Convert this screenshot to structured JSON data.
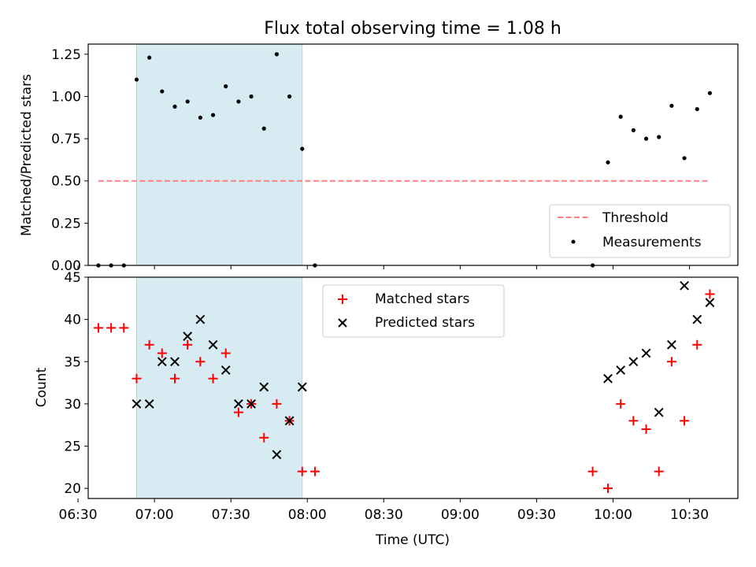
{
  "title": "Flux total observing time = 1.08 h",
  "colors": {
    "highlight": "#add8e6",
    "threshold": "#ff7f7f",
    "measurement": "#000000",
    "matched": "#ff0000",
    "predicted": "#000000"
  },
  "chart_data": [
    {
      "type": "scatter",
      "panel": "top",
      "ylabel": "Matched/Predicted stars",
      "ylim": [
        0,
        1.31
      ],
      "yticks": [
        "0.00",
        "0.25",
        "0.50",
        "0.75",
        "1.00",
        "1.25"
      ],
      "ytick_values": [
        0,
        0.25,
        0.5,
        0.75,
        1.0,
        1.25
      ],
      "threshold": {
        "name": "Threshold",
        "y": 0.5,
        "x_start": "06:38",
        "x_end": "10:38"
      },
      "highlight_span": {
        "start": "06:53",
        "end": "07:58"
      },
      "legend": {
        "placement": "lower right",
        "entries": [
          "Threshold",
          "Measurements"
        ]
      },
      "series": [
        {
          "name": "Measurements",
          "points": [
            {
              "x": "06:38",
              "y": 0.0
            },
            {
              "x": "06:43",
              "y": 0.0
            },
            {
              "x": "06:48",
              "y": 0.0
            },
            {
              "x": "06:53",
              "y": 1.1
            },
            {
              "x": "06:58",
              "y": 1.23
            },
            {
              "x": "07:03",
              "y": 1.03
            },
            {
              "x": "07:08",
              "y": 0.94
            },
            {
              "x": "07:13",
              "y": 0.97
            },
            {
              "x": "07:18",
              "y": 0.875
            },
            {
              "x": "07:23",
              "y": 0.89
            },
            {
              "x": "07:28",
              "y": 1.06
            },
            {
              "x": "07:33",
              "y": 0.97
            },
            {
              "x": "07:38",
              "y": 1.0
            },
            {
              "x": "07:43",
              "y": 0.81
            },
            {
              "x": "07:48",
              "y": 1.25
            },
            {
              "x": "07:53",
              "y": 1.0
            },
            {
              "x": "07:58",
              "y": 0.69
            },
            {
              "x": "08:03",
              "y": 0.0
            },
            {
              "x": "09:52",
              "y": 0.0
            },
            {
              "x": "09:58",
              "y": 0.61
            },
            {
              "x": "10:03",
              "y": 0.88
            },
            {
              "x": "10:08",
              "y": 0.8
            },
            {
              "x": "10:13",
              "y": 0.75
            },
            {
              "x": "10:18",
              "y": 0.76
            },
            {
              "x": "10:23",
              "y": 0.945
            },
            {
              "x": "10:28",
              "y": 0.635
            },
            {
              "x": "10:33",
              "y": 0.925
            },
            {
              "x": "10:38",
              "y": 1.02
            }
          ]
        }
      ]
    },
    {
      "type": "scatter",
      "panel": "bottom",
      "xlabel": "Time (UTC)",
      "ylabel": "Count",
      "ylim": [
        18.8,
        45
      ],
      "yticks": [
        "20",
        "25",
        "30",
        "35",
        "40",
        "45"
      ],
      "ytick_values": [
        20,
        25,
        30,
        35,
        40,
        45
      ],
      "xlim": [
        "06:34",
        "10:49"
      ],
      "xticks": [
        "06:30",
        "07:00",
        "07:30",
        "08:00",
        "08:30",
        "09:00",
        "09:30",
        "10:00",
        "10:30"
      ],
      "highlight_span": {
        "start": "06:53",
        "end": "07:58"
      },
      "legend": {
        "placement": "upper center",
        "entries": [
          "Matched stars",
          "Predicted stars"
        ]
      },
      "series": [
        {
          "name": "Matched stars",
          "marker": "+",
          "points": [
            {
              "x": "06:38",
              "y": 39
            },
            {
              "x": "06:43",
              "y": 39
            },
            {
              "x": "06:48",
              "y": 39
            },
            {
              "x": "06:53",
              "y": 33
            },
            {
              "x": "06:58",
              "y": 37
            },
            {
              "x": "07:03",
              "y": 36
            },
            {
              "x": "07:08",
              "y": 33
            },
            {
              "x": "07:13",
              "y": 37
            },
            {
              "x": "07:18",
              "y": 35
            },
            {
              "x": "07:23",
              "y": 33
            },
            {
              "x": "07:28",
              "y": 36
            },
            {
              "x": "07:33",
              "y": 29
            },
            {
              "x": "07:38",
              "y": 30
            },
            {
              "x": "07:43",
              "y": 26
            },
            {
              "x": "07:48",
              "y": 30
            },
            {
              "x": "07:53",
              "y": 28
            },
            {
              "x": "07:58",
              "y": 22
            },
            {
              "x": "08:03",
              "y": 22
            },
            {
              "x": "09:52",
              "y": 22
            },
            {
              "x": "09:58",
              "y": 20
            },
            {
              "x": "10:03",
              "y": 30
            },
            {
              "x": "10:08",
              "y": 28
            },
            {
              "x": "10:13",
              "y": 27
            },
            {
              "x": "10:18",
              "y": 22
            },
            {
              "x": "10:23",
              "y": 35
            },
            {
              "x": "10:28",
              "y": 28
            },
            {
              "x": "10:33",
              "y": 37
            },
            {
              "x": "10:38",
              "y": 43
            }
          ]
        },
        {
          "name": "Predicted stars",
          "marker": "x",
          "points": [
            {
              "x": "06:53",
              "y": 30
            },
            {
              "x": "06:58",
              "y": 30
            },
            {
              "x": "07:03",
              "y": 35
            },
            {
              "x": "07:08",
              "y": 35
            },
            {
              "x": "07:13",
              "y": 38
            },
            {
              "x": "07:18",
              "y": 40
            },
            {
              "x": "07:23",
              "y": 37
            },
            {
              "x": "07:28",
              "y": 34
            },
            {
              "x": "07:33",
              "y": 30
            },
            {
              "x": "07:38",
              "y": 30
            },
            {
              "x": "07:43",
              "y": 32
            },
            {
              "x": "07:48",
              "y": 24
            },
            {
              "x": "07:53",
              "y": 28
            },
            {
              "x": "07:58",
              "y": 32
            },
            {
              "x": "09:58",
              "y": 33
            },
            {
              "x": "10:03",
              "y": 34
            },
            {
              "x": "10:08",
              "y": 35
            },
            {
              "x": "10:13",
              "y": 36
            },
            {
              "x": "10:18",
              "y": 29
            },
            {
              "x": "10:23",
              "y": 37
            },
            {
              "x": "10:28",
              "y": 44
            },
            {
              "x": "10:33",
              "y": 40
            },
            {
              "x": "10:38",
              "y": 42
            }
          ]
        }
      ]
    }
  ]
}
